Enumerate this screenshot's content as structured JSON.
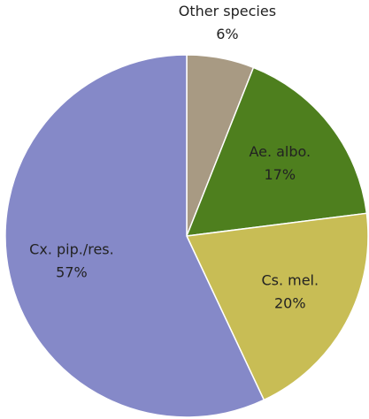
{
  "chart_data": {
    "type": "pie",
    "categories": [
      "Other species",
      "Ae. albo.",
      "Cs. mel.",
      "Cx. pip./res."
    ],
    "values": [
      6,
      17,
      20,
      57
    ],
    "value_labels": [
      "6%",
      "17%",
      "20%",
      "57%"
    ],
    "colors": [
      "#a89a83",
      "#4e7f1e",
      "#c8bd55",
      "#8589c8"
    ]
  }
}
